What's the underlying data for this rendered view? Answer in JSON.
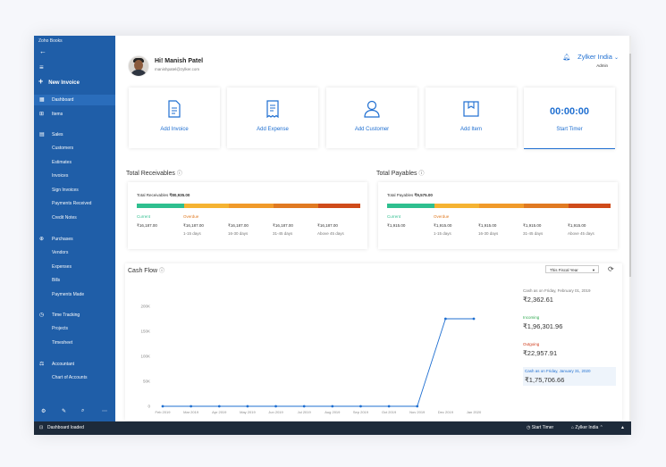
{
  "app": {
    "title": "Zoho Books"
  },
  "sidebar": {
    "new_label": "New Invoice",
    "items": [
      {
        "label": "Dashboard",
        "icon": "dashboard-icon"
      },
      {
        "label": "Items",
        "icon": "items-icon"
      },
      {
        "label": "Sales",
        "icon": "sales-icon"
      },
      {
        "label": "Customers"
      },
      {
        "label": "Estimates"
      },
      {
        "label": "Invoices"
      },
      {
        "label": "Sign Invoices"
      },
      {
        "label": "Payments Received"
      },
      {
        "label": "Credit Notes"
      },
      {
        "label": "Purchases",
        "icon": "purchases-icon"
      },
      {
        "label": "Vendors"
      },
      {
        "label": "Expenses"
      },
      {
        "label": "Bills"
      },
      {
        "label": "Payments Made"
      },
      {
        "label": "Time Tracking",
        "icon": "time-tracking-icon"
      },
      {
        "label": "Projects"
      },
      {
        "label": "Timesheet"
      },
      {
        "label": "Accountant",
        "icon": "accountant-icon"
      },
      {
        "label": "Chart of Accounts"
      }
    ]
  },
  "header": {
    "greeting": "Hi! Manish Patel",
    "email": "manishpatel@zylker.com",
    "org_name": "Zylker India",
    "org_role": "Admin"
  },
  "tiles": [
    {
      "label": "Add Invoice",
      "icon": "invoice-icon"
    },
    {
      "label": "Add Expense",
      "icon": "receipt-icon"
    },
    {
      "label": "Add Customer",
      "icon": "customer-icon"
    },
    {
      "label": "Add Item",
      "icon": "item-box-icon"
    },
    {
      "label": "Start Timer",
      "value": "00:00:00"
    }
  ],
  "receivables": {
    "title": "Total Receivables",
    "total_label": "Total Receivables",
    "total_value": "₹80,935.00",
    "bar": [
      {
        "fraction": 0.21,
        "color": "#2fbf8f"
      },
      {
        "fraction": 0.2,
        "color": "#f5b332"
      },
      {
        "fraction": 0.2,
        "color": "#f09a2a"
      },
      {
        "fraction": 0.2,
        "color": "#e07a22"
      },
      {
        "fraction": 0.19,
        "color": "#cf4b1a"
      }
    ],
    "cols": [
      {
        "head": "Current",
        "value": "₹16,187.00",
        "sub": ""
      },
      {
        "head": "Overdue",
        "value": "₹16,187.00",
        "sub": "1-15 days"
      },
      {
        "head": "",
        "value": "₹16,187.00",
        "sub": "16-30 days"
      },
      {
        "head": "",
        "value": "₹16,187.00",
        "sub": "31-45 days"
      },
      {
        "head": "",
        "value": "₹16,187.00",
        "sub": "Above 45 days"
      }
    ]
  },
  "payables": {
    "title": "Total Payables",
    "total_label": "Total Payables",
    "total_value": "₹9,575.00",
    "bar": [
      {
        "fraction": 0.21,
        "color": "#2fbf8f"
      },
      {
        "fraction": 0.2,
        "color": "#f5b332"
      },
      {
        "fraction": 0.2,
        "color": "#f09a2a"
      },
      {
        "fraction": 0.2,
        "color": "#e07a22"
      },
      {
        "fraction": 0.19,
        "color": "#cf4b1a"
      }
    ],
    "cols": [
      {
        "head": "Current",
        "value": "₹1,915.00",
        "sub": ""
      },
      {
        "head": "Overdue",
        "value": "₹1,915.00",
        "sub": "1-15 days"
      },
      {
        "head": "",
        "value": "₹1,915.00",
        "sub": "16-30 days"
      },
      {
        "head": "",
        "value": "₹1,915.00",
        "sub": "31-45 days"
      },
      {
        "head": "",
        "value": "₹1,915.00",
        "sub": "Above 45 days"
      }
    ]
  },
  "cashflow": {
    "title": "Cash Flow",
    "period": "This Fiscal Year",
    "cash_as_on_start_label": "Cash as on Friday, February 01, 2019",
    "cash_as_on_start_value": "₹2,362.61",
    "incoming_label": "Incoming",
    "incoming_value": "₹1,96,301.96",
    "outgoing_label": "Outgoing",
    "outgoing_value": "₹22,957.91",
    "cash_as_on_end_label": "Cash as on Friday, January 31, 2020",
    "cash_as_on_end_value": "₹1,75,706.66",
    "colors": {
      "incoming": "#2fa84f",
      "outgoing": "#cf3b1a",
      "line": "#1f6fd1"
    }
  },
  "chart_data": {
    "type": "line",
    "categories": [
      "Feb 2019",
      "Mar 2019",
      "Apr 2019",
      "May 2019",
      "Jun 2019",
      "Jul 2019",
      "Aug 2019",
      "Sep 2019",
      "Oct 2019",
      "Nov 2019",
      "Dec 2019",
      "Jan 2020"
    ],
    "series": [
      {
        "values": [
          0,
          0,
          0,
          0,
          0,
          0,
          0,
          0,
          0,
          0,
          175,
          175
        ]
      }
    ],
    "y_ticks": [
      "0",
      "50K",
      "100K",
      "150K",
      "200K"
    ],
    "ylim": [
      0,
      200
    ],
    "grid": false
  },
  "status": {
    "left": "Dashboard loaded",
    "timer": "Start Timer",
    "org": "Zylker India"
  }
}
